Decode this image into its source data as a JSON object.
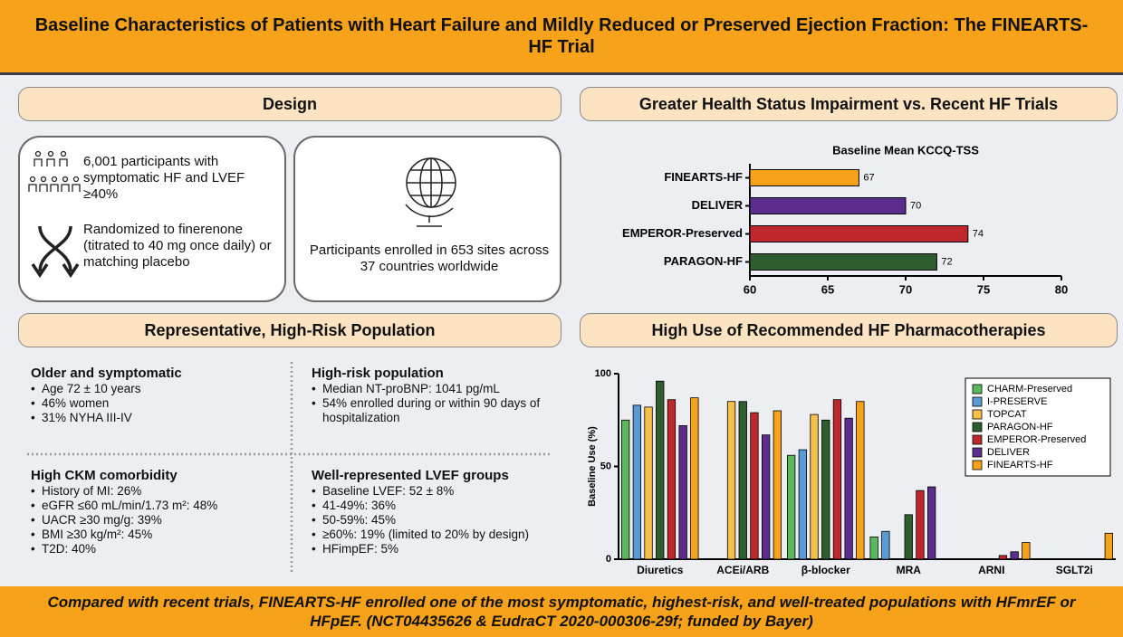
{
  "header": {
    "title": "Baseline Characteristics of Patients with Heart Failure and Mildly Reduced or Preserved Ejection Fraction: The FINEARTS-HF Trial"
  },
  "design": {
    "heading": "Design",
    "participants": "6,001 participants with symptomatic HF and LVEF ≥40%",
    "randomization": "Randomized to finerenone (titrated to 40 mg once daily) or matching placebo",
    "sites": "Participants enrolled in 653 sites across 37 countries worldwide"
  },
  "health_status": {
    "heading": "Greater Health Status Impairment vs. Recent HF Trials"
  },
  "population": {
    "heading": "Representative, High-Risk Population",
    "blocks": [
      {
        "title": "Older and symptomatic",
        "items": [
          "Age 72 ± 10 years",
          "46% women",
          "31% NYHA III-IV"
        ]
      },
      {
        "title": "High-risk population",
        "items": [
          "Median NT-proBNP: 1041 pg/mL",
          "54% enrolled during or within 90 days of hospitalization"
        ]
      },
      {
        "title": "High CKM comorbidity",
        "items": [
          "History of MI: 26%",
          "eGFR ≤60 mL/min/1.73 m²: 48%",
          "UACR ≥30 mg/g: 39%",
          "BMI ≥30 kg/m²: 45%",
          "T2D: 40%"
        ]
      },
      {
        "title": "Well-represented LVEF groups",
        "items": [
          "Baseline LVEF: 52 ± 8%",
          "41-49%: 36%",
          "50-59%: 45%",
          "≥60%: 19% (limited to 20% by design)",
          "HFimpEF: 5%"
        ]
      }
    ]
  },
  "pharmacotherapy": {
    "heading": "High Use of Recommended HF Pharmacotherapies"
  },
  "footer": {
    "text": "Compared with recent trials, FINEARTS-HF enrolled one of the most symptomatic, highest-risk, and well-treated populations with HFmrEF or HFpEF. (NCT04435626 & EudraCT 2020-000306-29f; funded by Bayer)"
  },
  "chart_data": [
    {
      "type": "barh",
      "title": "Baseline Mean KCCQ-TSS",
      "categories": [
        "FINEARTS-HF",
        "DELIVER",
        "EMPEROR-Preserved",
        "PARAGON-HF"
      ],
      "values": [
        67,
        70,
        74,
        72
      ],
      "colors": [
        "#f7a21b",
        "#5b2d8e",
        "#c0272d",
        "#2f5d2f"
      ],
      "xlim": [
        60,
        80
      ],
      "xticks": [
        60,
        65,
        70,
        75,
        80
      ]
    },
    {
      "type": "bar",
      "ylabel": "Baseline Use (%)",
      "categories": [
        "Diuretics",
        "ACEi/ARB",
        "β-blocker",
        "MRA",
        "ARNI",
        "SGLT2i"
      ],
      "ylim": [
        0,
        100
      ],
      "yticks": [
        0,
        50,
        100
      ],
      "legend": "upper right",
      "series": [
        {
          "name": "CHARM-Preserved",
          "color": "#5cb85c",
          "values": [
            75,
            null,
            56,
            12,
            null,
            null
          ]
        },
        {
          "name": "I-PRESERVE",
          "color": "#5b9bd5",
          "values": [
            83,
            null,
            59,
            15,
            null,
            null
          ]
        },
        {
          "name": "TOPCAT",
          "color": "#f6c04a",
          "values": [
            82,
            85,
            78,
            null,
            null,
            null
          ]
        },
        {
          "name": "PARAGON-HF",
          "color": "#2f5d2f",
          "values": [
            96,
            85,
            75,
            24,
            null,
            null
          ]
        },
        {
          "name": "EMPEROR-Preserved",
          "color": "#c0272d",
          "values": [
            86,
            79,
            86,
            37,
            2,
            null
          ]
        },
        {
          "name": "DELIVER",
          "color": "#5b2d8e",
          "values": [
            72,
            67,
            76,
            39,
            4,
            null
          ]
        },
        {
          "name": "FINEARTS-HF",
          "color": "#f7a21b",
          "values": [
            87,
            80,
            85,
            null,
            9,
            14
          ]
        }
      ]
    }
  ]
}
